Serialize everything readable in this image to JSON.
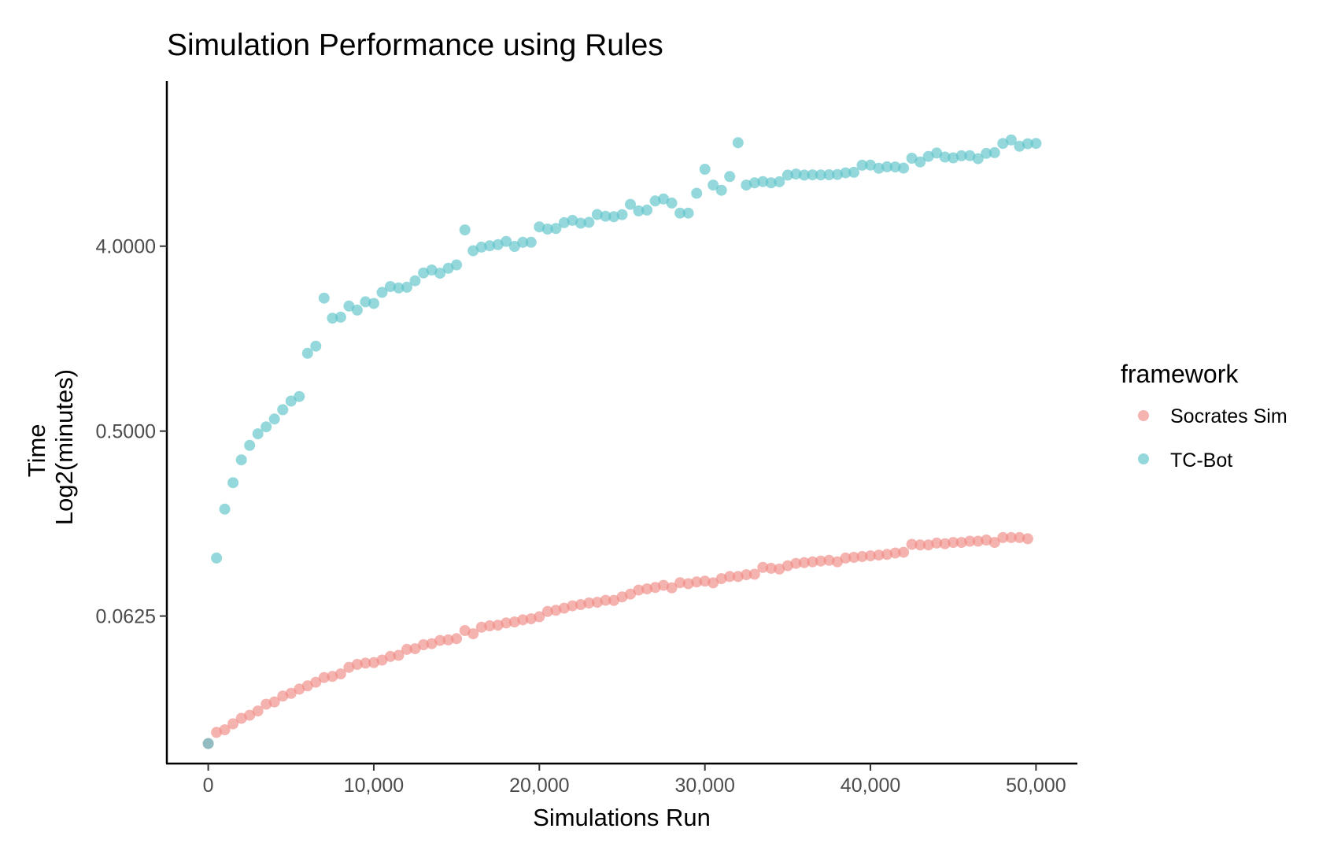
{
  "chart_data": {
    "type": "scatter",
    "title": "Simulation Performance using Rules",
    "xlabel": "Simulations Run",
    "ylabel_lines": [
      "Time",
      "Log2(minutes)"
    ],
    "y_scale": "log2",
    "xlim": [
      -2500,
      52500
    ],
    "ylim": [
      0.0119,
      25.6
    ],
    "x_ticks": [
      {
        "value": 0,
        "label": "0"
      },
      {
        "value": 10000,
        "label": "10,000"
      },
      {
        "value": 20000,
        "label": "20,000"
      },
      {
        "value": 30000,
        "label": "30,000"
      },
      {
        "value": 40000,
        "label": "40,000"
      },
      {
        "value": 50000,
        "label": "50,000"
      }
    ],
    "y_ticks": [
      {
        "value": 0.0625,
        "label": "0.0625"
      },
      {
        "value": 0.5,
        "label": "0.5000"
      },
      {
        "value": 4,
        "label": "4.0000"
      }
    ],
    "grid": false,
    "legend_title": "framework",
    "legend_position": "right",
    "series": [
      {
        "name": "Socrates Sim",
        "color": "#f08b84",
        "x": [
          0,
          500,
          1000,
          1500,
          2000,
          2500,
          3000,
          3500,
          4000,
          4500,
          5000,
          5500,
          6000,
          6500,
          7000,
          7500,
          8000,
          8500,
          9000,
          9500,
          10000,
          10500,
          11000,
          11500,
          12000,
          12500,
          13000,
          13500,
          14000,
          14500,
          15000,
          15500,
          16000,
          16500,
          17000,
          17500,
          18000,
          18500,
          19000,
          19500,
          20000,
          20500,
          21000,
          21500,
          22000,
          22500,
          23000,
          23500,
          24000,
          24500,
          25000,
          25500,
          26000,
          26500,
          27000,
          27500,
          28000,
          28500,
          29000,
          29500,
          30000,
          30500,
          31000,
          31500,
          32000,
          32500,
          33000,
          33500,
          34000,
          34500,
          35000,
          35500,
          36000,
          36500,
          37000,
          37500,
          38000,
          38500,
          39000,
          39500,
          40000,
          40500,
          41000,
          41500,
          42000,
          42500,
          43000,
          43500,
          44000,
          44500,
          45000,
          45500,
          46000,
          46500,
          47000,
          47500,
          48000,
          48500,
          49000,
          49500
        ],
        "y": [
          0.0149,
          0.0169,
          0.0174,
          0.0186,
          0.0198,
          0.0205,
          0.0215,
          0.0232,
          0.0238,
          0.0254,
          0.0262,
          0.0275,
          0.0285,
          0.0297,
          0.0313,
          0.0317,
          0.0326,
          0.0351,
          0.0363,
          0.0368,
          0.037,
          0.0381,
          0.0397,
          0.0402,
          0.043,
          0.0433,
          0.0453,
          0.0458,
          0.0475,
          0.0478,
          0.0485,
          0.0531,
          0.0512,
          0.0551,
          0.056,
          0.0564,
          0.0578,
          0.0585,
          0.0599,
          0.0606,
          0.062,
          0.0658,
          0.0667,
          0.0683,
          0.0701,
          0.0711,
          0.0724,
          0.073,
          0.0746,
          0.0745,
          0.0775,
          0.08,
          0.0837,
          0.0848,
          0.0862,
          0.0883,
          0.0858,
          0.0909,
          0.0899,
          0.0917,
          0.0925,
          0.0908,
          0.0952,
          0.0975,
          0.0975,
          0.0995,
          0.1,
          0.108,
          0.107,
          0.106,
          0.11,
          0.113,
          0.114,
          0.115,
          0.116,
          0.117,
          0.115,
          0.12,
          0.121,
          0.122,
          0.123,
          0.124,
          0.125,
          0.127,
          0.128,
          0.14,
          0.139,
          0.139,
          0.142,
          0.141,
          0.143,
          0.143,
          0.145,
          0.145,
          0.147,
          0.143,
          0.151,
          0.151,
          0.151,
          0.149
        ]
      },
      {
        "name": "TC-Bot",
        "color": "#5cc3c9",
        "x": [
          0,
          500,
          1000,
          1500,
          2000,
          2500,
          3000,
          3500,
          4000,
          4500,
          5000,
          5500,
          6000,
          6500,
          7000,
          7500,
          8000,
          8500,
          9000,
          9500,
          10000,
          10500,
          11000,
          11500,
          12000,
          12500,
          13000,
          13500,
          14000,
          14500,
          15000,
          15500,
          16000,
          16500,
          17000,
          17500,
          18000,
          18500,
          19000,
          19500,
          20000,
          20500,
          21000,
          21500,
          22000,
          22500,
          23000,
          23500,
          24000,
          24500,
          25000,
          25500,
          26000,
          26500,
          27000,
          27500,
          28000,
          28500,
          29000,
          29500,
          30000,
          30500,
          31000,
          31500,
          32000,
          32500,
          33000,
          33500,
          34000,
          34500,
          35000,
          35500,
          36000,
          36500,
          37000,
          37500,
          38000,
          38500,
          39000,
          39500,
          40000,
          40500,
          41000,
          41500,
          42000,
          42500,
          43000,
          43500,
          44000,
          44500,
          45000,
          45500,
          46000,
          46500,
          47000,
          47500,
          48000,
          48500,
          49000,
          49500,
          50000
        ],
        "y": [
          0.0149,
          0.12,
          0.208,
          0.28,
          0.362,
          0.426,
          0.485,
          0.525,
          0.573,
          0.636,
          0.701,
          0.738,
          1.2,
          1.3,
          2.23,
          1.78,
          1.8,
          2.04,
          1.95,
          2.14,
          2.1,
          2.38,
          2.54,
          2.5,
          2.52,
          2.71,
          2.96,
          3.06,
          2.95,
          3.12,
          3.24,
          4.8,
          3.8,
          3.96,
          4.02,
          4.07,
          4.22,
          3.99,
          4.18,
          4.18,
          4.97,
          4.85,
          4.88,
          5.21,
          5.35,
          5.18,
          5.23,
          5.71,
          5.6,
          5.57,
          5.7,
          6.4,
          5.95,
          6.0,
          6.65,
          6.8,
          6.5,
          5.8,
          5.8,
          7.25,
          9.5,
          7.95,
          7.5,
          8.75,
          12.8,
          7.95,
          8.15,
          8.27,
          8.15,
          8.25,
          8.9,
          9.0,
          8.9,
          8.92,
          8.91,
          8.93,
          8.95,
          9.12,
          9.18,
          9.94,
          9.95,
          9.6,
          9.76,
          9.75,
          9.63,
          10.75,
          10.31,
          10.97,
          11.4,
          10.9,
          10.8,
          11.05,
          11.07,
          10.7,
          11.35,
          11.45,
          12.7,
          13.2,
          12.3,
          12.65,
          12.7
        ]
      }
    ]
  }
}
